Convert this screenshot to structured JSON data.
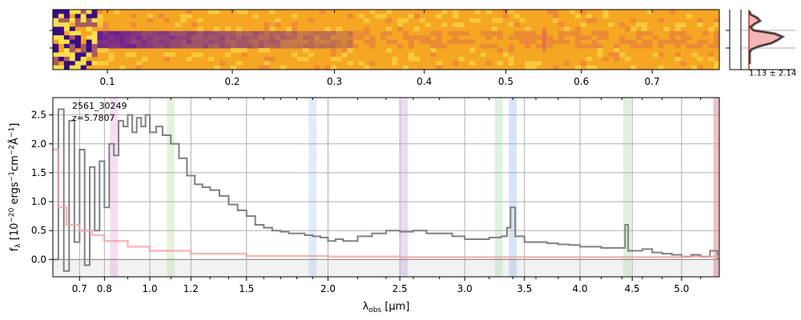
{
  "chart_data": [
    {
      "type": "heatmap",
      "panel": "2d-spectrum",
      "top_tick_labels": [
        "0.1",
        "0.2",
        "0.3",
        "0.4",
        "0.5",
        "0.6",
        "0.7"
      ],
      "top_tick_values": [
        0.1,
        0.2,
        0.3,
        0.4,
        0.5,
        0.6,
        0.7
      ],
      "colormap": "plasma",
      "colors": {
        "bg": "#f5a623",
        "hot": "#fbe14b",
        "cold": "#5b0fa0",
        "dark": "#1a0a6e"
      }
    },
    {
      "type": "line",
      "panel": "profile",
      "annotation": "1.13 ± 2.14",
      "colors": {
        "fill": "#f4b6b6",
        "edge": "#c03030",
        "model": "#333333"
      }
    },
    {
      "type": "line",
      "panel": "1d-spectrum",
      "object_id": "2561_30249",
      "redshift_label": "z=5.7807",
      "xlabel": "λ_obs [μm]",
      "ylabel": "f_λ [10^-20 ergs^-1 cm^-2 Å^-1]",
      "xlim": [
        0.6,
        5.4
      ],
      "ylim": [
        -0.3,
        2.8
      ],
      "x_ticks": [
        0.7,
        0.8,
        1.0,
        1.2,
        1.5,
        2.0,
        2.5,
        3.0,
        3.5,
        4.0,
        4.5,
        5.0
      ],
      "x_tick_labels": [
        "0.7",
        "0.8",
        "1.0",
        "1.2",
        "1.5",
        "2.0",
        "2.5",
        "3.0",
        "3.5",
        "4.0",
        "4.5",
        "5.0"
      ],
      "y_ticks": [
        0.0,
        0.5,
        1.0,
        1.5,
        2.0,
        2.5
      ],
      "y_tick_labels": [
        "0.0",
        "0.5",
        "1.0",
        "1.5",
        "2.0",
        "2.5"
      ],
      "grid": true,
      "line_bands": [
        {
          "x": 0.84,
          "color": "#e6a0d8"
        },
        {
          "x": 1.1,
          "color": "#b6d6a6"
        },
        {
          "x": 1.9,
          "color": "#a8c8ec"
        },
        {
          "x": 2.53,
          "color": "#b6a0d8"
        },
        {
          "x": 3.28,
          "color": "#a6d6a6"
        },
        {
          "x": 3.4,
          "color": "#8ab4e6"
        },
        {
          "x": 4.45,
          "color": "#a6d6a6"
        },
        {
          "x": 5.38,
          "color": "#d0505a"
        }
      ],
      "series": [
        {
          "color": "#808080",
          "x": [
            0.6,
            0.62,
            0.64,
            0.66,
            0.68,
            0.7,
            0.72,
            0.74,
            0.76,
            0.78,
            0.8,
            0.82,
            0.84,
            0.86,
            0.88,
            0.9,
            0.92,
            0.94,
            0.96,
            0.98,
            1.0,
            1.03,
            1.06,
            1.1,
            1.14,
            1.18,
            1.22,
            1.26,
            1.3,
            1.35,
            1.4,
            1.45,
            1.5,
            1.55,
            1.6,
            1.65,
            1.7,
            1.75,
            1.8,
            1.85,
            1.9,
            1.95,
            2.0,
            2.05,
            2.1,
            2.2,
            2.3,
            2.4,
            2.5,
            2.6,
            2.7,
            2.8,
            2.9,
            3.0,
            3.1,
            3.2,
            3.3,
            3.35,
            3.38,
            3.42,
            3.5,
            3.6,
            3.7,
            3.8,
            3.9,
            4.0,
            4.1,
            4.2,
            4.3,
            4.4,
            4.43,
            4.46,
            4.5,
            4.6,
            4.7,
            4.8,
            4.9,
            5.0,
            5.1,
            5.2,
            5.3,
            5.38
          ],
          "y": [
            0.0,
            2.6,
            -0.2,
            2.4,
            0.3,
            1.9,
            -0.1,
            1.6,
            0.5,
            1.7,
            0.9,
            2.0,
            1.8,
            2.4,
            2.3,
            2.5,
            2.2,
            2.45,
            2.3,
            2.5,
            2.2,
            2.3,
            2.15,
            2.0,
            1.75,
            1.45,
            1.3,
            1.25,
            1.2,
            1.1,
            0.95,
            0.85,
            0.75,
            0.6,
            0.55,
            0.5,
            0.48,
            0.45,
            0.45,
            0.42,
            0.4,
            0.38,
            0.32,
            0.35,
            0.32,
            0.4,
            0.45,
            0.5,
            0.48,
            0.5,
            0.45,
            0.45,
            0.4,
            0.35,
            0.35,
            0.38,
            0.4,
            0.55,
            0.9,
            0.4,
            0.3,
            0.3,
            0.28,
            0.26,
            0.25,
            0.22,
            0.22,
            0.2,
            0.2,
            0.2,
            0.6,
            0.15,
            0.15,
            0.18,
            0.12,
            0.1,
            0.08,
            0.05,
            0.08,
            0.05,
            0.15,
            0.0
          ]
        },
        {
          "color": "#f4a0a0",
          "x": [
            0.6,
            0.62,
            0.65,
            0.7,
            0.75,
            0.8,
            0.9,
            1.0,
            1.2,
            1.5,
            2.0,
            2.5,
            3.0,
            4.0,
            5.0,
            5.38
          ],
          "y": [
            1.9,
            0.9,
            0.6,
            0.5,
            0.42,
            0.32,
            0.22,
            0.15,
            0.1,
            0.06,
            0.05,
            0.04,
            0.04,
            0.04,
            0.05,
            0.07
          ]
        }
      ]
    }
  ]
}
